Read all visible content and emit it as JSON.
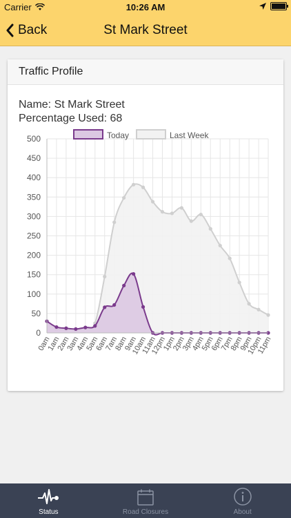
{
  "status_bar": {
    "carrier": "Carrier",
    "time": "10:26 AM"
  },
  "nav": {
    "back_label": "Back",
    "title": "St Mark Street"
  },
  "card": {
    "title": "Traffic Profile",
    "name_line": "Name: St Mark Street",
    "percentage_line": "Percentage Used: 68"
  },
  "chart_data": {
    "type": "line",
    "title": "",
    "xlabel": "",
    "ylabel": "",
    "ylim": [
      0,
      500
    ],
    "yticks": [
      0,
      50,
      100,
      150,
      200,
      250,
      300,
      350,
      400,
      450,
      500
    ],
    "categories": [
      "0am",
      "1am",
      "2am",
      "3am",
      "4am",
      "5am",
      "6am",
      "7am",
      "8am",
      "9am",
      "10am",
      "11am",
      "12pm",
      "1pm",
      "2pm",
      "3pm",
      "4pm",
      "5pm",
      "6pm",
      "7pm",
      "8pm",
      "9pm",
      "10pm",
      "11pm"
    ],
    "legend_position": "top",
    "grid": true,
    "series": [
      {
        "name": "Today",
        "color": "#7a3a8c",
        "fill": "#dcc8e2",
        "values": [
          30,
          15,
          12,
          10,
          14,
          18,
          66,
          72,
          122,
          152,
          67,
          0,
          0,
          0,
          0,
          0,
          0,
          0,
          0,
          0,
          0,
          0,
          0,
          0
        ]
      },
      {
        "name": "Last Week",
        "color": "#cfcfcf",
        "fill": "#f2f2f2",
        "values": [
          30,
          10,
          8,
          6,
          12,
          25,
          145,
          285,
          348,
          382,
          375,
          338,
          312,
          308,
          322,
          288,
          305,
          268,
          225,
          192,
          130,
          75,
          60,
          46
        ]
      }
    ]
  },
  "tabs": [
    {
      "label": "Status",
      "icon": "pulse-icon",
      "active": true
    },
    {
      "label": "Road Closures",
      "icon": "calendar-icon",
      "active": false
    },
    {
      "label": "About",
      "icon": "info-icon",
      "active": false
    }
  ]
}
